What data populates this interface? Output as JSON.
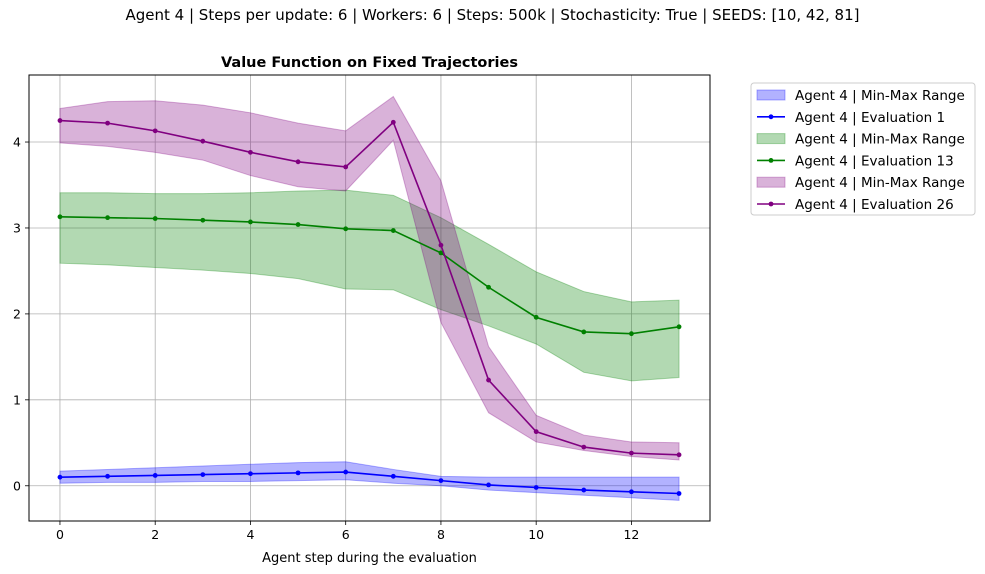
{
  "suptitle": "Agent 4 | Steps per update: 6 | Workers: 6 | Steps: 500k | Stochasticity: True | SEEDS: [10, 42, 81]",
  "chart_data": {
    "type": "line",
    "title": "Value Function on Fixed Trajectories",
    "xlabel": "Agent step during the evaluation",
    "ylabel": "",
    "xlim": [
      -0.65,
      13.65
    ],
    "ylim": [
      -0.41,
      4.78
    ],
    "xticks": [
      0,
      2,
      4,
      6,
      8,
      10,
      12
    ],
    "yticks": [
      0,
      1,
      2,
      3,
      4
    ],
    "grid": true,
    "legend_placement": "outside upper right",
    "x": [
      0,
      1,
      2,
      3,
      4,
      5,
      6,
      7,
      8,
      9,
      10,
      11,
      12,
      13
    ],
    "series": [
      {
        "name": "Agent 4 | Evaluation 1",
        "band_name": "Agent 4 | Min-Max Range",
        "color": "#0000ff",
        "fill": "#0000ff",
        "values": [
          0.1,
          0.11,
          0.12,
          0.13,
          0.14,
          0.15,
          0.16,
          0.11,
          0.06,
          0.01,
          -0.02,
          -0.05,
          -0.07,
          -0.09
        ],
        "min": [
          0.03,
          0.04,
          0.04,
          0.05,
          0.05,
          0.06,
          0.07,
          0.03,
          0.0,
          -0.05,
          -0.08,
          -0.11,
          -0.14,
          -0.17
        ],
        "max": [
          0.17,
          0.19,
          0.21,
          0.23,
          0.25,
          0.27,
          0.28,
          0.19,
          0.11,
          0.1,
          0.1,
          0.1,
          0.1,
          0.1
        ]
      },
      {
        "name": "Agent 4 | Evaluation 13",
        "band_name": "Agent 4 | Min-Max Range",
        "color": "#008000",
        "fill": "#008000",
        "values": [
          3.13,
          3.12,
          3.11,
          3.09,
          3.07,
          3.04,
          2.99,
          2.97,
          2.71,
          2.31,
          1.96,
          1.79,
          1.77,
          1.85
        ],
        "min": [
          2.59,
          2.57,
          2.54,
          2.51,
          2.47,
          2.41,
          2.29,
          2.28,
          2.05,
          1.86,
          1.65,
          1.32,
          1.22,
          1.26
        ],
        "max": [
          3.41,
          3.41,
          3.4,
          3.4,
          3.41,
          3.43,
          3.44,
          3.38,
          3.12,
          2.81,
          2.49,
          2.26,
          2.14,
          2.16
        ]
      },
      {
        "name": "Agent 4 | Evaluation 26",
        "band_name": "Agent 4 | Min-Max Range",
        "color": "#800080",
        "fill": "#800080",
        "values": [
          4.25,
          4.22,
          4.13,
          4.01,
          3.88,
          3.77,
          3.71,
          4.23,
          2.8,
          1.23,
          0.63,
          0.45,
          0.38,
          0.36
        ],
        "min": [
          3.99,
          3.95,
          3.88,
          3.79,
          3.61,
          3.48,
          3.43,
          4.02,
          1.9,
          0.85,
          0.51,
          0.41,
          0.34,
          0.3
        ],
        "max": [
          4.39,
          4.47,
          4.48,
          4.43,
          4.34,
          4.22,
          4.13,
          4.53,
          3.55,
          1.62,
          0.82,
          0.59,
          0.51,
          0.5
        ]
      }
    ]
  }
}
